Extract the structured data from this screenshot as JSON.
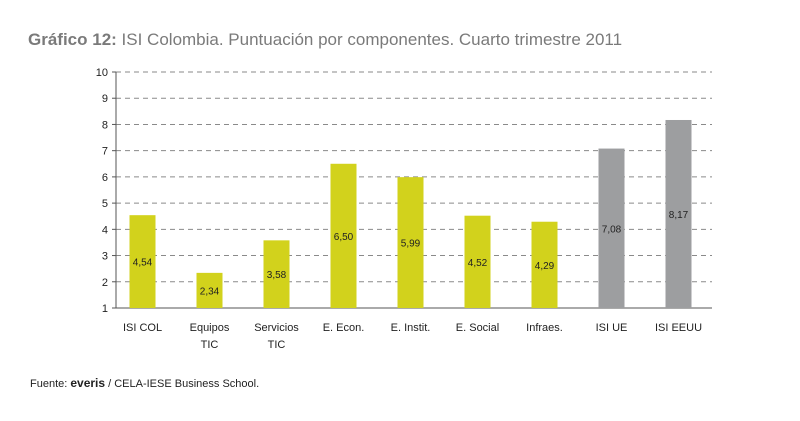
{
  "chart_data": {
    "type": "bar",
    "title_label": "Gráfico 12:",
    "title_text": "ISI Colombia. Puntuación por componentes. Cuarto trimestre 2011",
    "categories": [
      [
        "ISI COL"
      ],
      [
        "Equipos",
        "TIC"
      ],
      [
        "Servicios",
        "TIC"
      ],
      [
        "E. Econ."
      ],
      [
        "E. Instit."
      ],
      [
        "E. Social"
      ],
      [
        "Infraes."
      ],
      [
        "ISI UE"
      ],
      [
        "ISI EEUU"
      ]
    ],
    "values": [
      4.54,
      2.34,
      3.58,
      6.5,
      5.99,
      4.52,
      4.29,
      7.08,
      8.17
    ],
    "value_labels": [
      "4,54",
      "2,34",
      "3,58",
      "6,50",
      "5,99",
      "4,52",
      "4,29",
      "7,08",
      "8,17"
    ],
    "bar_colors": [
      "#d2d21c",
      "#d2d21c",
      "#d2d21c",
      "#d2d21c",
      "#d2d21c",
      "#d2d21c",
      "#d2d21c",
      "#9d9ea0",
      "#9d9ea0"
    ],
    "ylim": [
      1,
      10
    ],
    "yticks": [
      1,
      2,
      3,
      4,
      5,
      6,
      7,
      8,
      9,
      10
    ],
    "grid": true,
    "legend": "none"
  },
  "source": {
    "prefix": "Fuente: ",
    "brand": "everis",
    "suffix": " / CELA-IESE Business School."
  }
}
